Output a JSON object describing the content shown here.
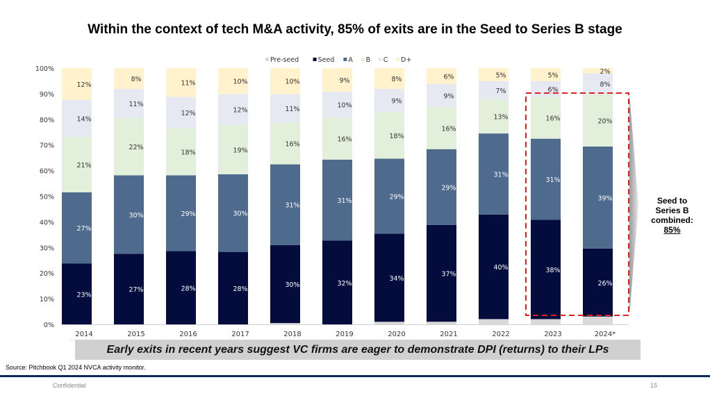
{
  "slide": {
    "title": "Within the context of tech M&A activity, 85% of exits are in the Seed to Series B stage",
    "callout": {
      "line1": "Seed to",
      "line2": "Series B",
      "line3": "combined:",
      "value": "85%"
    },
    "banner": "Early exits in recent years suggest VC firms are eager to demonstrate DPI (returns) to their LPs",
    "source": "Source: Pitchbook Q1 2024 NVCA activity monitor.",
    "footer": "Confidential",
    "page_number": "15"
  },
  "chart_data": {
    "type": "bar",
    "stacked": true,
    "title": "",
    "xlabel": "",
    "ylabel": "",
    "ylim": [
      0,
      100
    ],
    "yticks": [
      "0%",
      "10%",
      "20%",
      "30%",
      "40%",
      "50%",
      "60%",
      "70%",
      "80%",
      "90%",
      "100%"
    ],
    "grid": false,
    "legend_position": "top",
    "categories": [
      "2014",
      "2015",
      "2016",
      "2017",
      "2018",
      "2019",
      "2020",
      "2021",
      "2022",
      "2023",
      "2024*"
    ],
    "series": [
      {
        "name": "Pre-seed",
        "color": "#d9d9d9",
        "text_color": "#333333",
        "values": [
          0,
          0,
          0,
          0,
          0.5,
          0,
          1,
          1,
          2,
          2,
          3
        ],
        "labels": [
          "",
          "",
          "",
          "",
          "",
          "",
          "",
          "",
          "",
          "",
          ""
        ]
      },
      {
        "name": "Seed",
        "color": "#040c3e",
        "text_color": "#ffffff",
        "values": [
          23,
          27,
          28,
          28,
          30,
          32,
          34,
          37,
          40,
          38,
          26
        ],
        "labels": [
          "23%",
          "27%",
          "28%",
          "28%",
          "30%",
          "32%",
          "34%",
          "37%",
          "40%",
          "38%",
          "26%"
        ]
      },
      {
        "name": "A",
        "color": "#4e6a8c",
        "text_color": "#ffffff",
        "values": [
          27,
          30,
          29,
          30,
          31,
          31,
          29,
          29,
          31,
          31,
          39
        ],
        "labels": [
          "27%",
          "30%",
          "29%",
          "30%",
          "31%",
          "31%",
          "29%",
          "29%",
          "31%",
          "31%",
          "39%"
        ]
      },
      {
        "name": "B",
        "color": "#e2efda",
        "text_color": "#333333",
        "values": [
          21,
          22,
          18,
          19,
          16,
          16,
          18,
          16,
          13,
          16,
          20
        ],
        "labels": [
          "21%",
          "22%",
          "18%",
          "19%",
          "16%",
          "16%",
          "18%",
          "16%",
          "13%",
          "16%",
          "20%"
        ]
      },
      {
        "name": "C",
        "color": "#e6e9f2",
        "text_color": "#333333",
        "values": [
          14,
          11,
          12,
          12,
          11,
          10,
          9,
          9,
          7,
          6,
          8
        ],
        "labels": [
          "14%",
          "11%",
          "12%",
          "12%",
          "11%",
          "10%",
          "9%",
          "9%",
          "7%",
          "6%",
          "8%"
        ]
      },
      {
        "name": "D+",
        "color": "#fff2cc",
        "text_color": "#333333",
        "values": [
          12,
          8,
          11,
          10,
          10,
          9,
          8,
          6,
          5,
          5,
          2
        ],
        "labels": [
          "12%",
          "8%",
          "11%",
          "10%",
          "10%",
          "9%",
          "8%",
          "6%",
          "5%",
          "5%",
          "2%"
        ]
      }
    ],
    "highlight": {
      "categories": [
        "2023",
        "2024*"
      ],
      "series": [
        "Seed",
        "A",
        "B"
      ],
      "color": "#e02020",
      "style": "dashed"
    }
  }
}
